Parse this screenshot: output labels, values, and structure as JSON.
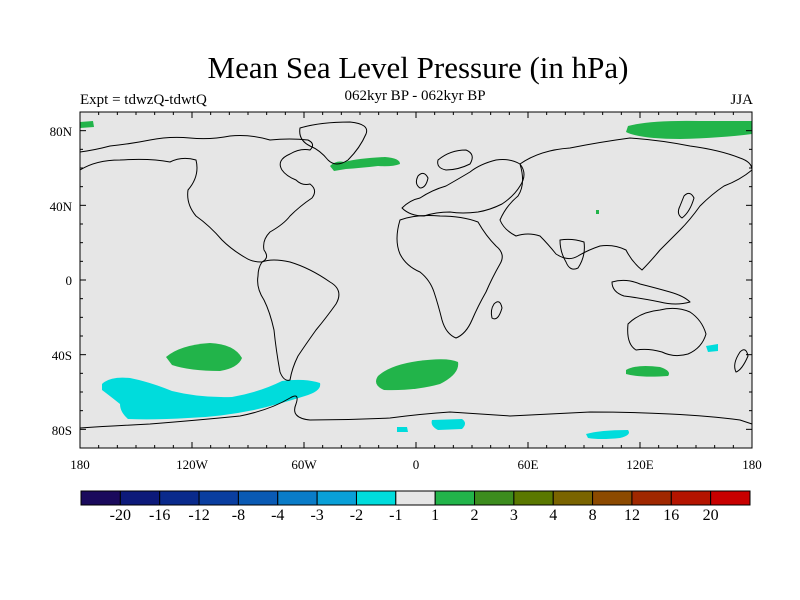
{
  "map": {
    "title": "Mean Sea Level Pressure (in hPa)",
    "experiment": "Expt = tdwzQ-tdwtQ",
    "period": "062kyr BP - 062kyr BP",
    "season": "JJA",
    "lat_labels": [
      "80N",
      "40N",
      "0",
      "40S",
      "80S"
    ],
    "lon_labels": [
      "180",
      "120W",
      "60W",
      "0",
      "60E",
      "120E",
      "180"
    ],
    "background_color": "#e6e6e6"
  },
  "colorbar": {
    "colors": [
      "#1a0a5c",
      "#0d1a7a",
      "#0a2a8c",
      "#0a3ea0",
      "#0a5ab4",
      "#0a7cc8",
      "#09a0d8",
      "#00dcdc",
      "#e6e6e6",
      "#22b44a",
      "#3c8c1e",
      "#5a7800",
      "#7a6400",
      "#8c4a00",
      "#a02800",
      "#b41400",
      "#c80000"
    ],
    "labels": [
      "-20",
      "-16",
      "-12",
      "-8",
      "-4",
      "-3",
      "-2",
      "-1",
      "1",
      "2",
      "3",
      "4",
      "8",
      "12",
      "16",
      "20"
    ]
  }
}
